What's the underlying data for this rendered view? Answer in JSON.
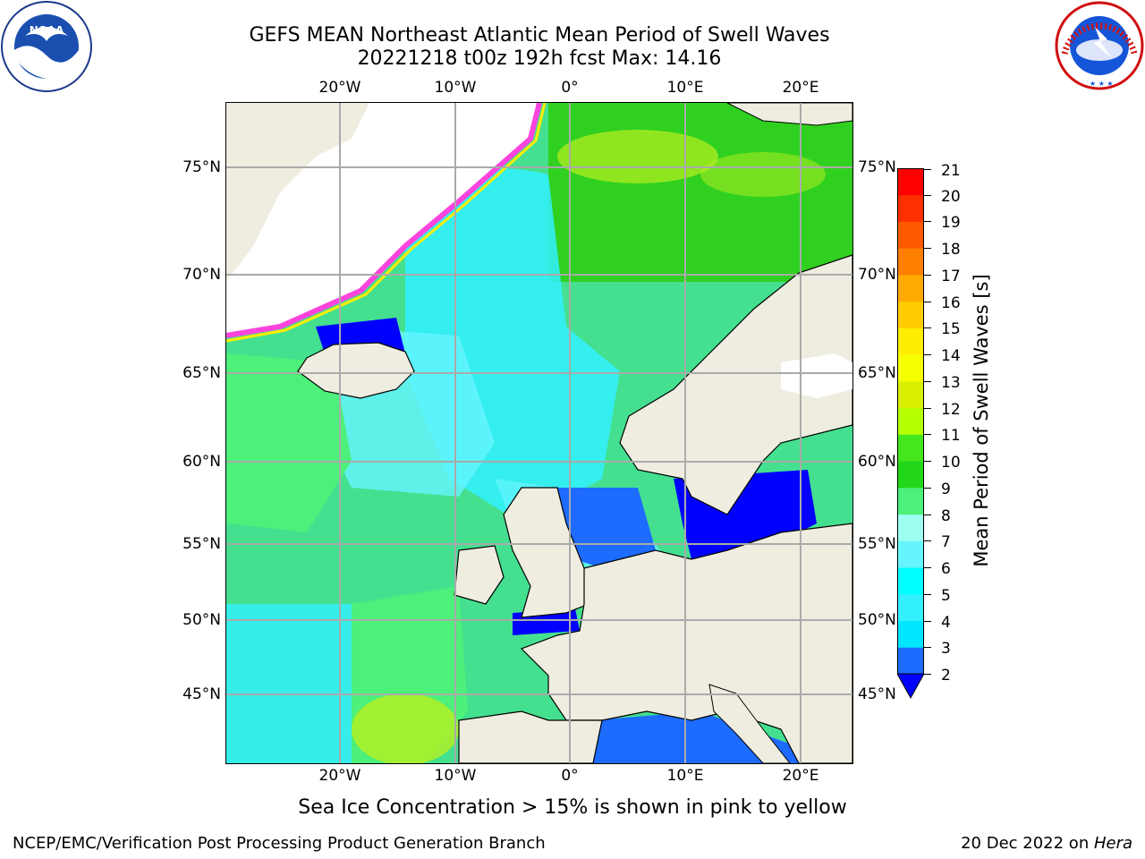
{
  "title": {
    "line1": "GEFS MEAN Northeast Atlantic Mean Period of Swell Waves",
    "line2": "20221218 t00z 192h fcst   Max: 14.16"
  },
  "map": {
    "lon_labels": [
      "20°W",
      "10°W",
      "0°",
      "10°E",
      "20°E"
    ],
    "lat_labels": [
      "75°N",
      "70°N",
      "65°N",
      "60°N",
      "55°N",
      "50°N",
      "45°N"
    ]
  },
  "colorbar": {
    "label": "Mean Period of Swell Waves [s]",
    "ticks": [
      "21",
      "20",
      "19",
      "18",
      "17",
      "16",
      "15",
      "14",
      "13",
      "12",
      "11",
      "10",
      "9",
      "8",
      "7",
      "6",
      "5",
      "4",
      "3",
      "2"
    ],
    "levels": [
      {
        "value": "2",
        "color": "#0000ff"
      },
      {
        "value": "3",
        "color": "#1e6bff"
      },
      {
        "value": "4",
        "color": "#00e6ff"
      },
      {
        "value": "5",
        "color": "#33f0ff"
      },
      {
        "value": "6",
        "color": "#00ffff"
      },
      {
        "value": "7",
        "color": "#66f5ff"
      },
      {
        "value": "8",
        "color": "#9cfff0"
      },
      {
        "value": "9",
        "color": "#4cf07a"
      },
      {
        "value": "10",
        "color": "#22d61a"
      },
      {
        "value": "11",
        "color": "#44e61e"
      },
      {
        "value": "12",
        "color": "#b4ff00"
      },
      {
        "value": "13",
        "color": "#d8f000"
      },
      {
        "value": "14",
        "color": "#f5ff00"
      },
      {
        "value": "15",
        "color": "#ffee00"
      },
      {
        "value": "16",
        "color": "#ffcc00"
      },
      {
        "value": "17",
        "color": "#ffaa00"
      },
      {
        "value": "18",
        "color": "#ff7f00"
      },
      {
        "value": "19",
        "color": "#ff5a00"
      },
      {
        "value": "20",
        "color": "#ff3000"
      },
      {
        "value": "21",
        "color": "#ff0000"
      }
    ]
  },
  "caption": "Sea Ice Concentration > 15% is shown in pink to yellow",
  "footer": {
    "left": "NCEP/EMC/Verification Post Processing Product Generation Branch",
    "right_date": "20 Dec 2022 on ",
    "right_host": "Hera"
  },
  "colors": {
    "land": "#efede0",
    "ice_edge": "#ff44dd",
    "grid": "#aaaaaa"
  }
}
